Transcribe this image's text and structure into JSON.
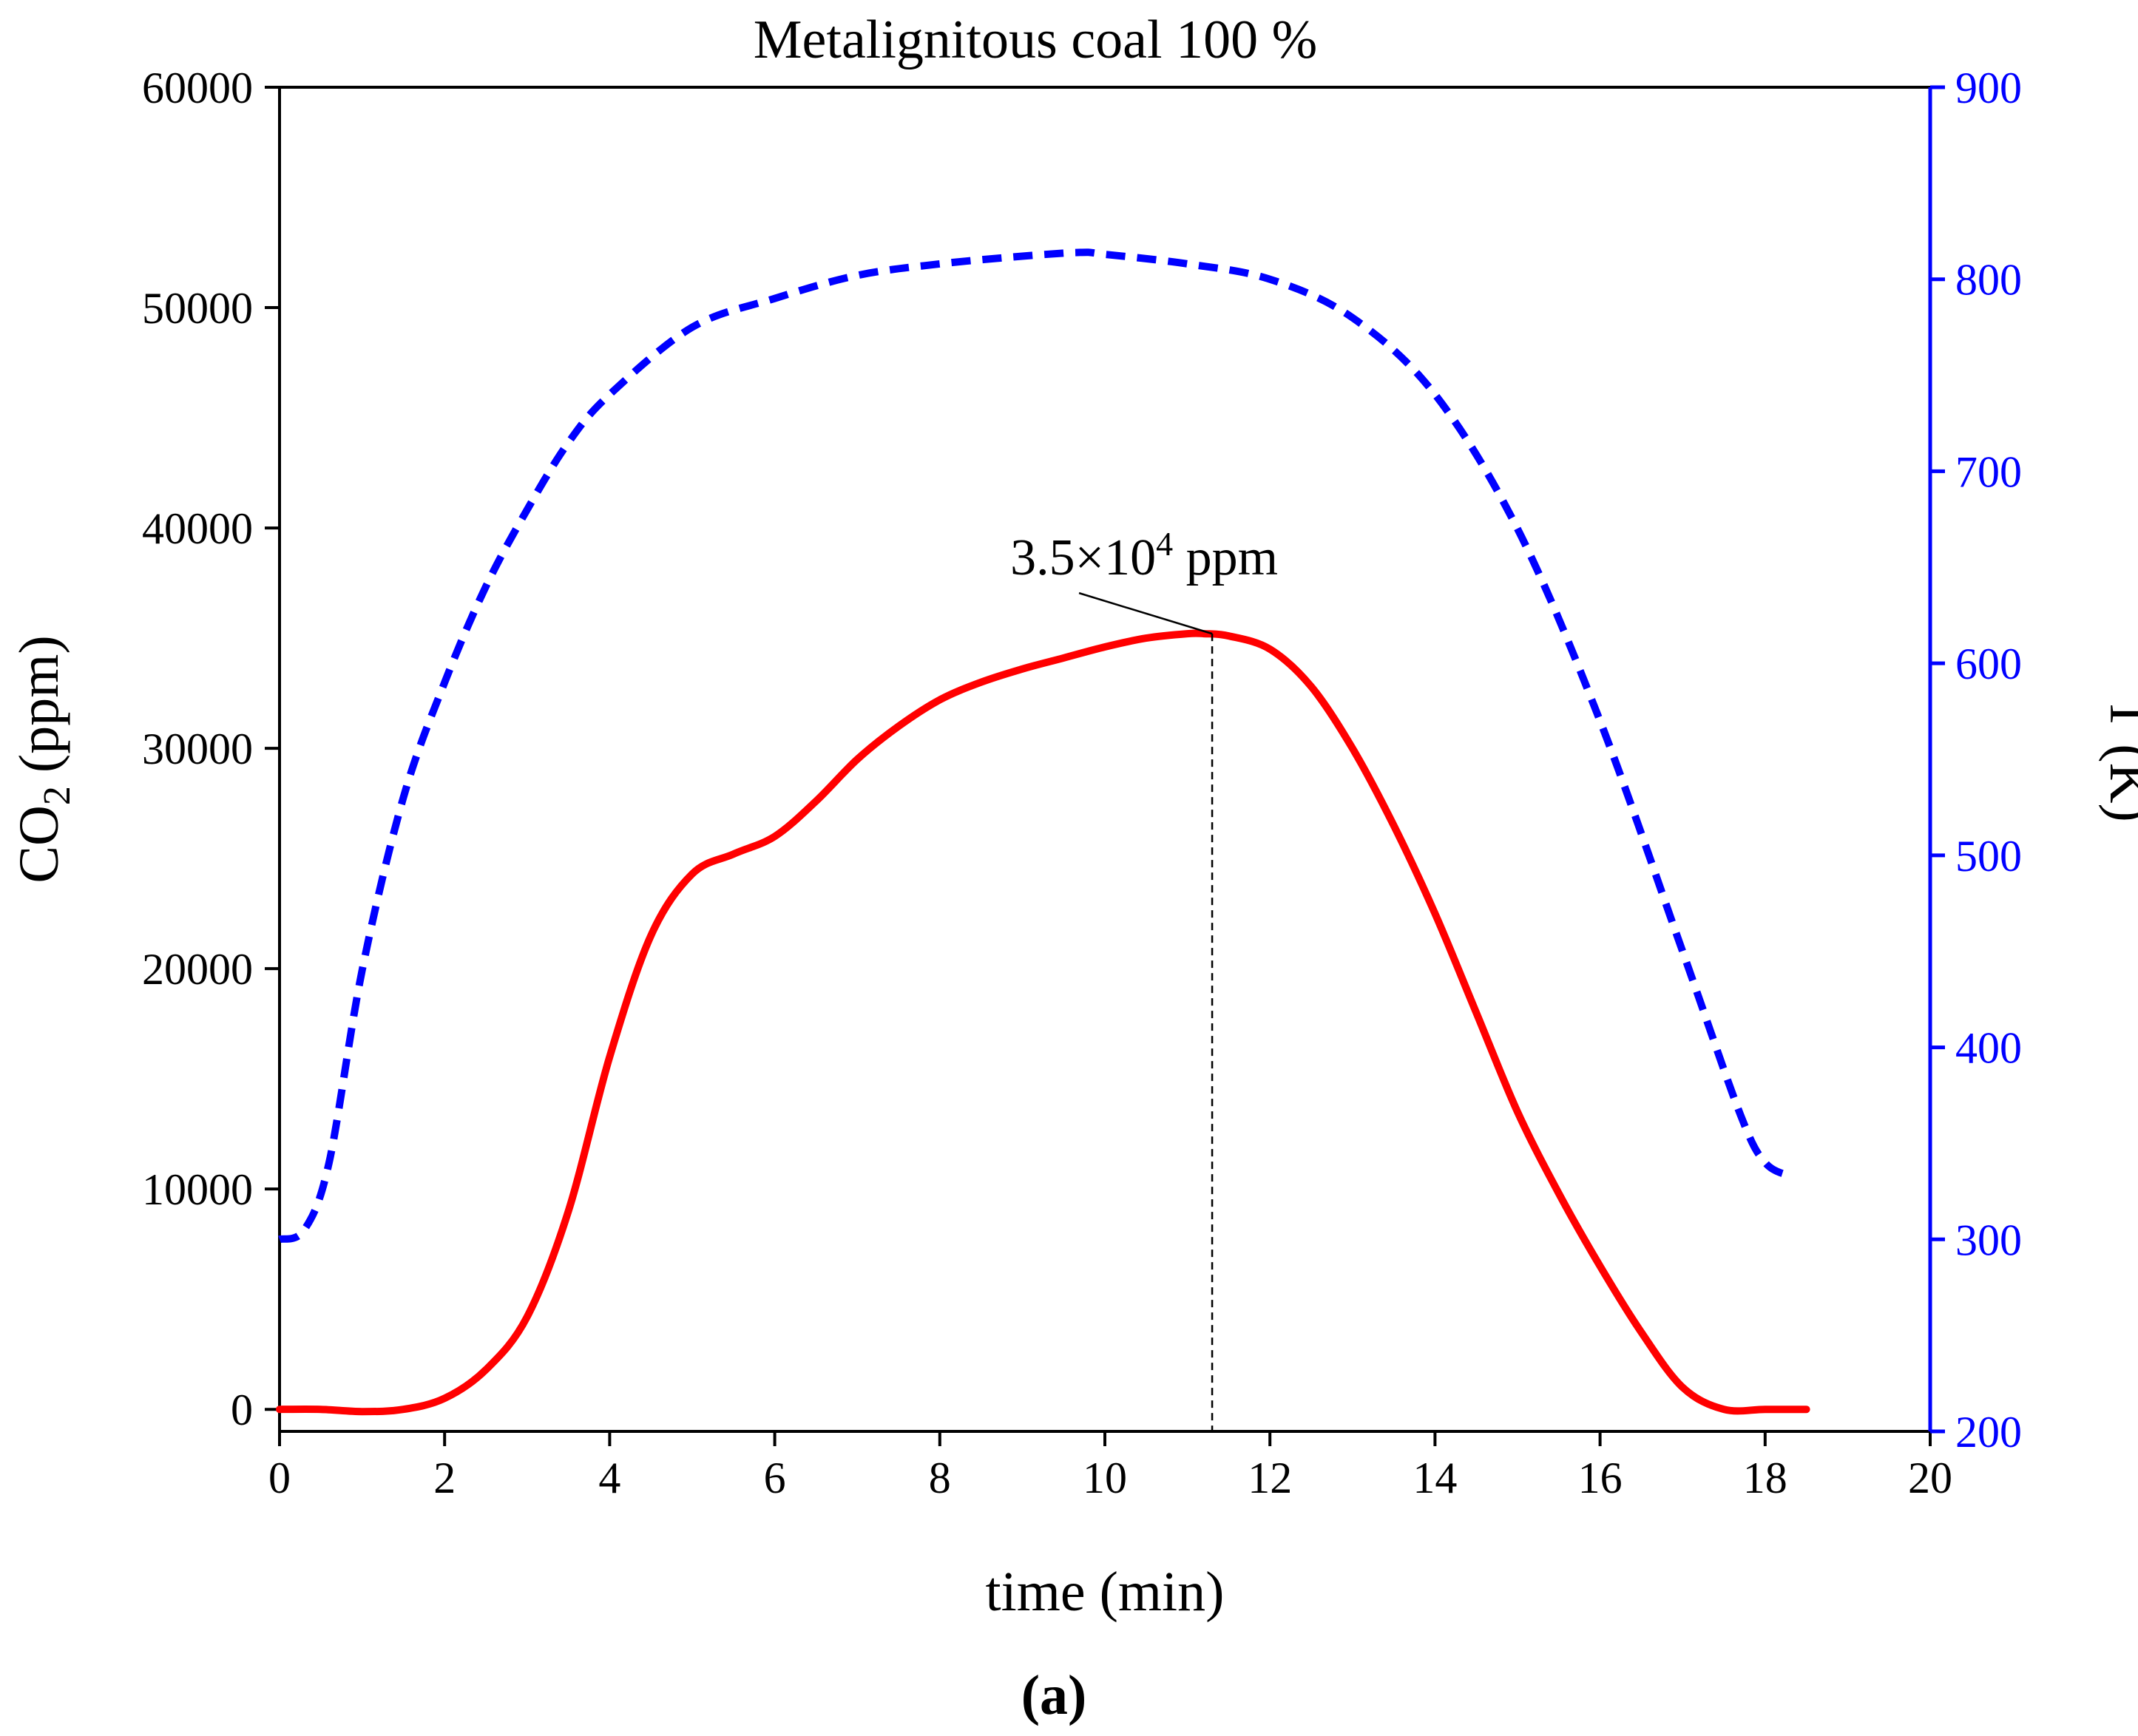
{
  "chart_data": {
    "type": "line",
    "title": "Metalignitous coal 100 %",
    "xlabel": "time (min)",
    "ylabel_main": "CO",
    "ylabel_sub": "2",
    "ylabel_units": "(ppm)",
    "y2label": "T (K)",
    "xlim": [
      0,
      20
    ],
    "ylim": [
      -1000,
      60000
    ],
    "y2lim": [
      200,
      900
    ],
    "x_ticks": [
      "0",
      "2",
      "4",
      "6",
      "8",
      "10",
      "12",
      "14",
      "16",
      "18",
      "20"
    ],
    "y_ticks": [
      "0",
      "10000",
      "20000",
      "30000",
      "40000",
      "50000",
      "60000"
    ],
    "y2_ticks": [
      "200",
      "300",
      "400",
      "500",
      "600",
      "700",
      "800",
      "900"
    ],
    "colors": {
      "co2": "#ff0000",
      "temperature": "#0000ff",
      "axis_right": "#0000ff",
      "axis": "#000000"
    },
    "series": [
      {
        "name": "CO2",
        "axis": "left",
        "style": "solid",
        "x": [
          0,
          0.5,
          1.0,
          1.5,
          2.0,
          2.5,
          3.0,
          3.5,
          4.0,
          4.5,
          5.0,
          5.5,
          6.0,
          6.5,
          7.0,
          7.5,
          8.0,
          8.5,
          9.0,
          9.5,
          10.0,
          10.5,
          11.0,
          11.2,
          11.5,
          12.0,
          12.5,
          13.0,
          13.5,
          14.0,
          14.5,
          15.0,
          15.5,
          16.0,
          16.5,
          17.0,
          17.5,
          18.0,
          18.5
        ],
        "y": [
          0,
          0,
          -100,
          0,
          500,
          1800,
          4200,
          9000,
          16000,
          21500,
          24300,
          25200,
          26000,
          27600,
          29500,
          31000,
          32200,
          33000,
          33600,
          34100,
          34600,
          35000,
          35200,
          35200,
          35100,
          34500,
          32800,
          30000,
          26500,
          22500,
          18000,
          13500,
          9800,
          6500,
          3500,
          1000,
          0,
          0,
          0
        ]
      },
      {
        "name": "T",
        "axis": "right",
        "style": "dashed",
        "x": [
          0,
          0.3,
          0.6,
          1.0,
          1.5,
          2.0,
          2.5,
          3.0,
          3.5,
          4.0,
          5.0,
          6.0,
          7.0,
          8.0,
          9.0,
          9.7,
          10.0,
          11.0,
          12.0,
          13.0,
          14.0,
          15.0,
          16.0,
          17.0,
          17.7,
          18.0,
          18.3
        ],
        "y": [
          300,
          305,
          340,
          440,
          530,
          590,
          640,
          680,
          715,
          740,
          775,
          790,
          802,
          808,
          812,
          814,
          813,
          808,
          800,
          780,
          740,
          670,
          570,
          450,
          365,
          340,
          333
        ]
      }
    ],
    "annotations": [
      {
        "text_main": "3.5×10",
        "text_sup": "4",
        "text_tail": " ppm",
        "x": 11.3,
        "y": 35200
      }
    ]
  },
  "caption": "(a)"
}
